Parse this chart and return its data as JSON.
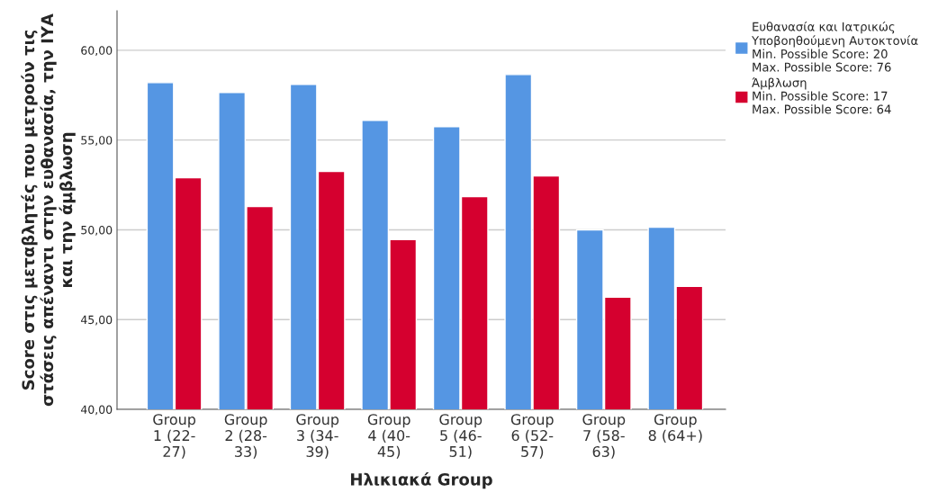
{
  "chart_data": {
    "type": "bar",
    "xlabel": "Ηλικιακά Group",
    "ylabel": "Score στις μεταβλητές που μετρούν τις στάσεις απέναντι στην ευθανασία, την ΙΥΑ και την άμβλωση",
    "categories": [
      "Group 1 (22-27)",
      "Group 2 (28-33)",
      "Group 3 (34-39)",
      "Group 4 (40-45)",
      "Group 5 (46-51)",
      "Group 6 (52-57)",
      "Group 7 (58-63)",
      "Group 8 (64+)"
    ],
    "series": [
      {
        "name": "Ευθανασία και Ιατρικώς\nΥποβοηθούμενη Αυτοκτονία\nMin. Possible Score: 20\nMax. Possible Score: 76",
        "color": "#5596e3",
        "values": [
          58.2,
          57.65,
          58.1,
          56.1,
          55.75,
          58.65,
          50.0,
          50.15
        ]
      },
      {
        "name": "Άμβλωση\nMin. Possible Score: 17\nMax. Possible Score: 64",
        "color": "#d5002f",
        "values": [
          52.9,
          51.3,
          53.25,
          49.45,
          51.85,
          53.0,
          46.25,
          46.85
        ]
      }
    ],
    "ylim": [
      40,
      62.2
    ],
    "yticks": [
      {
        "value": 40,
        "label": "40,00"
      },
      {
        "value": 45,
        "label": "45,00"
      },
      {
        "value": 50,
        "label": "50,00"
      },
      {
        "value": 55,
        "label": "55,00"
      },
      {
        "value": 60,
        "label": "60,00"
      }
    ],
    "grid": "y",
    "legend": "top right"
  }
}
